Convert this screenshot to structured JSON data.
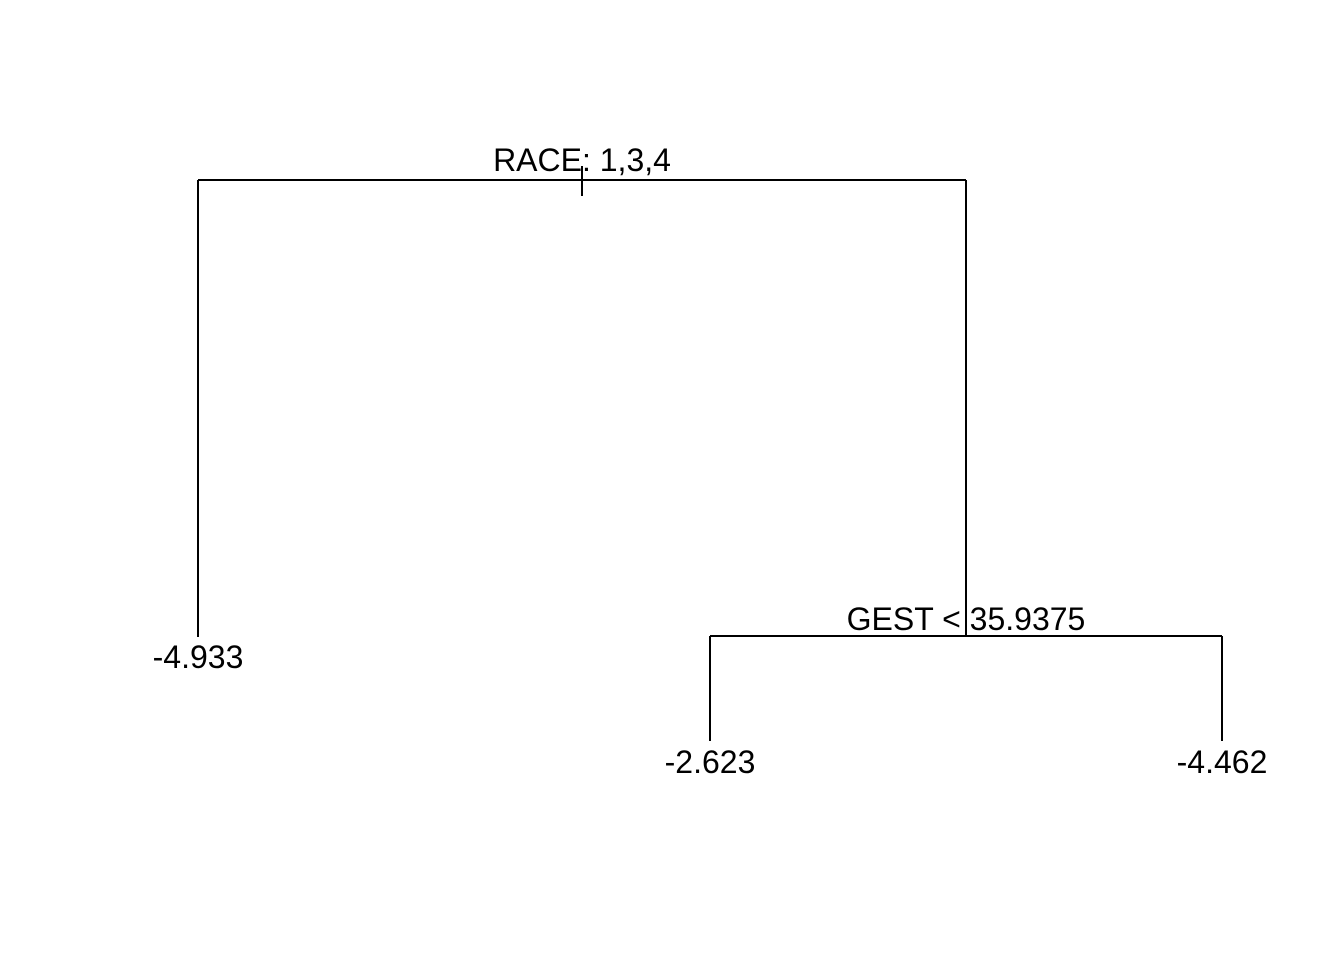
{
  "tree": {
    "root_split": {
      "label": "RACE: 1,3,4"
    },
    "right_split": {
      "label": "GEST < 35.9375"
    },
    "leaves": [
      {
        "id": "leaf-left",
        "label": "-4.933"
      },
      {
        "id": "leaf-mid",
        "label": "-2.623"
      },
      {
        "id": "leaf-right",
        "label": "-4.462"
      }
    ]
  },
  "colors": {
    "line": "#000000",
    "text": "#000000",
    "background": "#ffffff"
  }
}
